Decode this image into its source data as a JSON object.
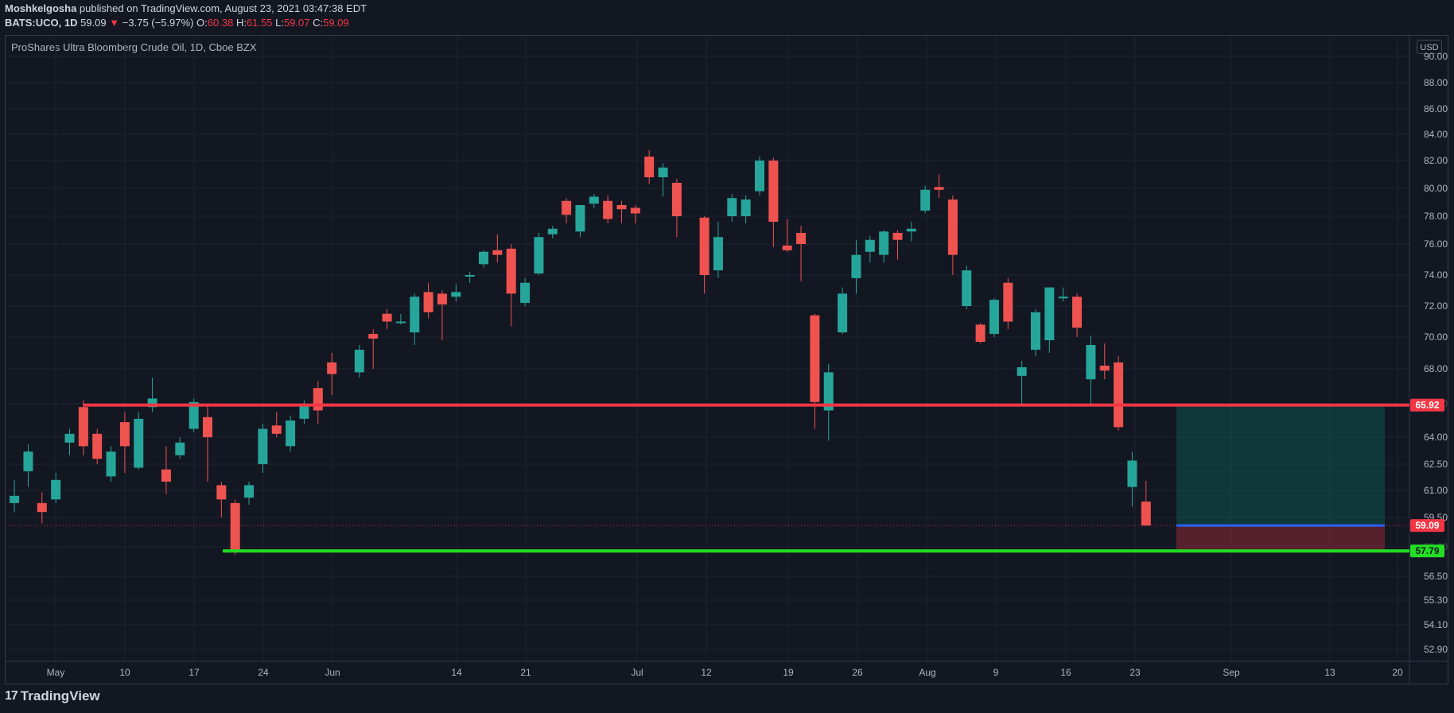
{
  "header": {
    "author": "Moshkelgosha",
    "published": "published on TradingView.com, August 23, 2021 03:47:38 EDT",
    "symbol": "BATS:UCO, 1D",
    "last": "59.09",
    "arrow": "▼",
    "change": "−3.75 (−5.97%)",
    "o_label": "O:",
    "o": "60.38",
    "h_label": "H:",
    "h": "61.55",
    "l_label": "L:",
    "l": "59.07",
    "c_label": "C:",
    "c": "59.09"
  },
  "chart_title": "ProShares Ultra Bloomberg Crude Oil, 1D, Cboe BZX",
  "currency": "USD",
  "footer": {
    "brand": "TradingView",
    "logo": "17"
  },
  "chart_data": {
    "type": "candlestick",
    "colors": {
      "up": "#26a69a",
      "down": "#ef5350",
      "resistance": "#f23645",
      "support": "#22dd22",
      "target": "#2962ff",
      "background": "#131722"
    },
    "yticks": [
      "90.00",
      "88.00",
      "86.00",
      "84.00",
      "82.00",
      "80.00",
      "78.00",
      "76.00",
      "74.00",
      "72.00",
      "70.00",
      "68.00",
      "66.00",
      "64.00",
      "62.50",
      "61.00",
      "59.50",
      "58.00",
      "56.50",
      "55.30",
      "54.10",
      "52.90"
    ],
    "xticks": [
      "May",
      "10",
      "17",
      "24",
      "Jun",
      "14",
      "21",
      "Jul",
      "12",
      "19",
      "26",
      "Aug",
      "9",
      "16",
      "23",
      "Sep",
      "13",
      "20"
    ],
    "levels": [
      {
        "name": "resistance",
        "value": 65.92,
        "label": "65.92"
      },
      {
        "name": "last-price",
        "value": 59.09,
        "label": "59.09"
      },
      {
        "name": "support",
        "value": 57.79,
        "label": "57.79"
      }
    ],
    "position": {
      "entry": 59.09,
      "take_profit": 65.92,
      "stop_loss": 57.79
    },
    "candles": [
      {
        "d": "2021-04-27",
        "o": 60.3,
        "h": 61.6,
        "l": 59.8,
        "c": 60.7
      },
      {
        "d": "2021-04-28",
        "o": 62.1,
        "h": 63.6,
        "l": 61.2,
        "c": 63.2
      },
      {
        "d": "2021-04-29",
        "o": 60.3,
        "h": 60.9,
        "l": 59.2,
        "c": 59.8
      },
      {
        "d": "2021-04-30",
        "o": 60.5,
        "h": 62.0,
        "l": 60.3,
        "c": 61.6
      },
      {
        "d": "2021-05-03",
        "o": 63.7,
        "h": 64.5,
        "l": 63.0,
        "c": 64.2
      },
      {
        "d": "2021-05-04",
        "o": 65.8,
        "h": 66.2,
        "l": 63.0,
        "c": 63.5
      },
      {
        "d": "2021-05-05",
        "o": 64.2,
        "h": 64.5,
        "l": 62.5,
        "c": 62.8
      },
      {
        "d": "2021-05-06",
        "o": 61.8,
        "h": 63.5,
        "l": 61.5,
        "c": 63.2
      },
      {
        "d": "2021-05-07",
        "o": 64.9,
        "h": 65.5,
        "l": 62.0,
        "c": 63.5
      },
      {
        "d": "2021-05-10",
        "o": 62.3,
        "h": 65.5,
        "l": 62.2,
        "c": 65.1
      },
      {
        "d": "2021-05-11",
        "o": 65.8,
        "h": 67.5,
        "l": 65.5,
        "c": 66.3
      },
      {
        "d": "2021-05-12",
        "o": 62.2,
        "h": 63.5,
        "l": 60.8,
        "c": 61.5
      },
      {
        "d": "2021-05-13",
        "o": 63.0,
        "h": 64.0,
        "l": 62.8,
        "c": 63.7
      },
      {
        "d": "2021-05-14",
        "o": 64.5,
        "h": 66.3,
        "l": 64.3,
        "c": 66.1
      },
      {
        "d": "2021-05-17",
        "o": 65.2,
        "h": 66.0,
        "l": 61.5,
        "c": 64.0
      },
      {
        "d": "2021-05-18",
        "o": 61.3,
        "h": 61.5,
        "l": 59.5,
        "c": 60.5
      },
      {
        "d": "2021-05-19",
        "o": 60.3,
        "h": 60.5,
        "l": 57.6,
        "c": 57.8
      },
      {
        "d": "2021-05-20",
        "o": 60.6,
        "h": 61.5,
        "l": 60.2,
        "c": 61.3
      },
      {
        "d": "2021-05-21",
        "o": 62.5,
        "h": 64.8,
        "l": 62.0,
        "c": 64.5
      },
      {
        "d": "2021-05-24",
        "o": 64.7,
        "h": 65.5,
        "l": 64.0,
        "c": 64.2
      },
      {
        "d": "2021-05-25",
        "o": 63.5,
        "h": 65.3,
        "l": 63.2,
        "c": 65.0
      },
      {
        "d": "2021-05-26",
        "o": 65.1,
        "h": 66.2,
        "l": 64.8,
        "c": 66.0
      },
      {
        "d": "2021-05-27",
        "o": 66.9,
        "h": 67.3,
        "l": 64.8,
        "c": 65.6
      },
      {
        "d": "2021-05-28",
        "o": 68.4,
        "h": 69.0,
        "l": 66.5,
        "c": 67.7
      },
      {
        "d": "2021-06-01",
        "o": 67.8,
        "h": 69.5,
        "l": 67.5,
        "c": 69.2
      },
      {
        "d": "2021-06-02",
        "o": 70.2,
        "h": 70.5,
        "l": 68.0,
        "c": 69.9
      },
      {
        "d": "2021-06-03",
        "o": 71.5,
        "h": 71.8,
        "l": 70.5,
        "c": 71.0
      },
      {
        "d": "2021-06-04",
        "o": 71.0,
        "h": 71.5,
        "l": 70.8,
        "c": 71.0
      },
      {
        "d": "2021-06-07",
        "o": 70.3,
        "h": 72.8,
        "l": 69.5,
        "c": 72.6
      },
      {
        "d": "2021-06-08",
        "o": 72.9,
        "h": 73.5,
        "l": 71.2,
        "c": 71.6
      },
      {
        "d": "2021-06-09",
        "o": 72.8,
        "h": 73.0,
        "l": 69.8,
        "c": 72.1
      },
      {
        "d": "2021-06-10",
        "o": 72.6,
        "h": 73.4,
        "l": 72.3,
        "c": 72.9
      },
      {
        "d": "2021-06-11",
        "o": 73.9,
        "h": 74.2,
        "l": 73.5,
        "c": 74.0
      },
      {
        "d": "2021-06-14",
        "o": 74.7,
        "h": 75.6,
        "l": 74.5,
        "c": 75.5
      },
      {
        "d": "2021-06-15",
        "o": 75.6,
        "h": 76.7,
        "l": 74.8,
        "c": 75.3
      },
      {
        "d": "2021-06-16",
        "o": 75.7,
        "h": 76.0,
        "l": 70.7,
        "c": 72.8
      },
      {
        "d": "2021-06-17",
        "o": 72.2,
        "h": 73.8,
        "l": 72.0,
        "c": 73.5
      },
      {
        "d": "2021-06-18",
        "o": 74.1,
        "h": 76.8,
        "l": 74.0,
        "c": 76.5
      },
      {
        "d": "2021-06-21",
        "o": 76.7,
        "h": 77.3,
        "l": 76.4,
        "c": 77.1
      },
      {
        "d": "2021-06-22",
        "o": 79.1,
        "h": 79.3,
        "l": 77.5,
        "c": 78.1
      },
      {
        "d": "2021-06-23",
        "o": 76.9,
        "h": 78.8,
        "l": 76.5,
        "c": 78.8
      },
      {
        "d": "2021-06-24",
        "o": 78.9,
        "h": 79.6,
        "l": 78.6,
        "c": 79.4
      },
      {
        "d": "2021-06-25",
        "o": 79.1,
        "h": 79.5,
        "l": 77.5,
        "c": 77.8
      },
      {
        "d": "2021-06-28",
        "o": 78.8,
        "h": 79.1,
        "l": 77.5,
        "c": 78.5
      },
      {
        "d": "2021-06-29",
        "o": 78.6,
        "h": 78.8,
        "l": 77.5,
        "c": 78.2
      },
      {
        "d": "2021-06-30",
        "o": 82.3,
        "h": 82.8,
        "l": 80.3,
        "c": 80.8
      },
      {
        "d": "2021-07-01",
        "o": 80.8,
        "h": 81.8,
        "l": 79.4,
        "c": 81.5
      },
      {
        "d": "2021-07-02",
        "o": 80.4,
        "h": 80.7,
        "l": 76.5,
        "c": 78.0
      },
      {
        "d": "2021-07-06",
        "o": 77.9,
        "h": 78.0,
        "l": 72.8,
        "c": 74.0
      },
      {
        "d": "2021-07-07",
        "o": 74.3,
        "h": 77.6,
        "l": 73.8,
        "c": 76.5
      },
      {
        "d": "2021-07-08",
        "o": 78.0,
        "h": 79.6,
        "l": 77.6,
        "c": 79.3
      },
      {
        "d": "2021-07-09",
        "o": 78.0,
        "h": 79.5,
        "l": 77.5,
        "c": 79.2
      },
      {
        "d": "2021-07-12",
        "o": 79.8,
        "h": 82.3,
        "l": 79.5,
        "c": 82.0
      },
      {
        "d": "2021-07-13",
        "o": 82.0,
        "h": 82.2,
        "l": 75.8,
        "c": 77.6
      },
      {
        "d": "2021-07-14",
        "o": 75.9,
        "h": 77.8,
        "l": 75.5,
        "c": 75.6
      },
      {
        "d": "2021-07-15",
        "o": 76.8,
        "h": 77.3,
        "l": 73.6,
        "c": 76.0
      },
      {
        "d": "2021-07-16",
        "o": 71.4,
        "h": 71.5,
        "l": 64.5,
        "c": 66.1
      },
      {
        "d": "2021-07-19",
        "o": 65.6,
        "h": 68.3,
        "l": 63.8,
        "c": 67.8
      },
      {
        "d": "2021-07-20",
        "o": 70.3,
        "h": 73.2,
        "l": 70.2,
        "c": 72.8
      },
      {
        "d": "2021-07-21",
        "o": 73.8,
        "h": 76.3,
        "l": 72.8,
        "c": 75.3
      },
      {
        "d": "2021-07-22",
        "o": 75.5,
        "h": 76.6,
        "l": 74.8,
        "c": 76.3
      },
      {
        "d": "2021-07-23",
        "o": 75.3,
        "h": 77.0,
        "l": 74.8,
        "c": 76.9
      },
      {
        "d": "2021-07-26",
        "o": 76.8,
        "h": 77.0,
        "l": 75.0,
        "c": 76.3
      },
      {
        "d": "2021-07-27",
        "o": 76.9,
        "h": 77.6,
        "l": 76.2,
        "c": 77.1
      },
      {
        "d": "2021-07-28",
        "o": 78.4,
        "h": 80.2,
        "l": 78.2,
        "c": 79.9
      },
      {
        "d": "2021-07-29",
        "o": 80.1,
        "h": 81.0,
        "l": 79.3,
        "c": 79.9
      },
      {
        "d": "2021-07-30",
        "o": 79.2,
        "h": 79.5,
        "l": 74.0,
        "c": 75.3
      },
      {
        "d": "2021-08-02",
        "o": 72.0,
        "h": 74.6,
        "l": 71.8,
        "c": 74.3
      },
      {
        "d": "2021-08-03",
        "o": 70.8,
        "h": 70.9,
        "l": 69.6,
        "c": 69.7
      },
      {
        "d": "2021-08-04",
        "o": 70.2,
        "h": 72.5,
        "l": 70.0,
        "c": 72.4
      },
      {
        "d": "2021-08-05",
        "o": 73.5,
        "h": 73.8,
        "l": 70.5,
        "c": 71.0
      },
      {
        "d": "2021-08-06",
        "o": 67.6,
        "h": 68.5,
        "l": 66.0,
        "c": 68.1
      },
      {
        "d": "2021-08-09",
        "o": 69.2,
        "h": 71.8,
        "l": 68.8,
        "c": 71.6
      },
      {
        "d": "2021-08-10",
        "o": 69.8,
        "h": 73.2,
        "l": 69.0,
        "c": 73.2
      },
      {
        "d": "2021-08-11",
        "o": 72.6,
        "h": 73.2,
        "l": 72.3,
        "c": 72.6
      },
      {
        "d": "2021-08-12",
        "o": 72.6,
        "h": 72.8,
        "l": 70.0,
        "c": 70.6
      },
      {
        "d": "2021-08-13",
        "o": 67.4,
        "h": 70.1,
        "l": 66.0,
        "c": 69.5
      },
      {
        "d": "2021-08-16",
        "o": 68.2,
        "h": 69.6,
        "l": 67.4,
        "c": 67.9
      },
      {
        "d": "2021-08-17",
        "o": 68.4,
        "h": 68.8,
        "l": 64.4,
        "c": 64.6
      },
      {
        "d": "2021-08-18",
        "o": 61.2,
        "h": 63.2,
        "l": 60.1,
        "c": 62.7
      },
      {
        "d": "2021-08-19",
        "o": 60.38,
        "h": 61.55,
        "l": 59.07,
        "c": 59.09
      }
    ]
  }
}
